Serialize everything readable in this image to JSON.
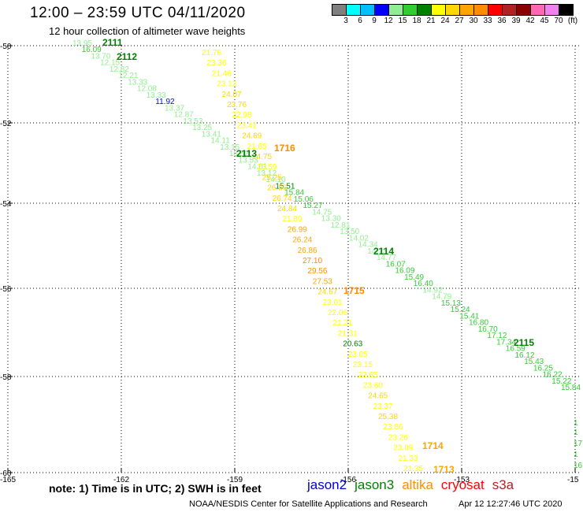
{
  "header": {
    "title": "12:00 – 23:59 UTC 04/11/2020",
    "subtitle": "12 hour collection of altimeter wave heights"
  },
  "color_scale": {
    "labels": [
      "3",
      "6",
      "9",
      "12",
      "15",
      "18",
      "21",
      "24",
      "27",
      "30",
      "33",
      "36",
      "39",
      "42",
      "45",
      "70",
      "(ft)"
    ],
    "colors": [
      "#808080",
      "#00ffff",
      "#00bfff",
      "#0000ff",
      "#90ee90",
      "#32cd32",
      "#008000",
      "#ffff00",
      "#ffd700",
      "#ffa500",
      "#ff8c00",
      "#ff0000",
      "#b22222",
      "#8b0000",
      "#ff69b4",
      "#ee82ee",
      "#000000"
    ]
  },
  "map": {
    "lat_labels": [
      "-50",
      "-52",
      "-54",
      "-56",
      "-58",
      "-60"
    ],
    "lon_labels": [
      "-165",
      "-162",
      "-159",
      "-156",
      "-153",
      "-15"
    ],
    "orbit_labels": [
      {
        "text": "2111",
        "color": "#008000"
      },
      {
        "text": "2112",
        "color": "#008000"
      },
      {
        "text": "2113",
        "color": "#008000"
      },
      {
        "text": "2114",
        "color": "#008000"
      },
      {
        "text": "2115",
        "color": "#008000"
      },
      {
        "text": "1716",
        "color": "#ff8c00"
      },
      {
        "text": "1715",
        "color": "#ff8c00"
      },
      {
        "text": "1714",
        "color": "#ffa500"
      },
      {
        "text": "1713",
        "color": "#ffa500"
      }
    ],
    "track_a": {
      "values": [
        "13.95",
        "16.09",
        "13.70",
        "12.15",
        "12.82",
        "12.21",
        "13.33",
        "12.08",
        "13.33",
        "11.92",
        "13.37",
        "12.87",
        "13.53",
        "13.25",
        "13.41",
        "14.11",
        "13.15",
        "13.52",
        "13.53",
        "14.01",
        "13.12",
        "14.10",
        "15.51",
        "15.84",
        "15.06",
        "15.27",
        "14.75",
        "13.30",
        "12.81",
        "13.50",
        "14.02",
        "14.34",
        "14.73",
        "14.77",
        "16.07",
        "16.09",
        "15.49",
        "16.40",
        "14.92",
        "14.79",
        "15.13",
        "15.24",
        "15.41",
        "16.80",
        "16.70",
        "17.12",
        "17.34",
        "16.59",
        "16.12",
        "15.43",
        "16.25",
        "16.22",
        "15.22",
        "15.84"
      ],
      "colors": [
        "#90ee90",
        "#32cd32",
        "#90ee90",
        "#90ee90",
        "#90ee90",
        "#90ee90",
        "#90ee90",
        "#90ee90",
        "#90ee90",
        "#0000ff",
        "#90ee90",
        "#90ee90",
        "#90ee90",
        "#90ee90",
        "#90ee90",
        "#90ee90",
        "#90ee90",
        "#90ee90",
        "#90ee90",
        "#90ee90",
        "#90ee90",
        "#90ee90",
        "#008000",
        "#32cd32",
        "#32cd32",
        "#32cd32",
        "#90ee90",
        "#90ee90",
        "#90ee90",
        "#90ee90",
        "#90ee90",
        "#90ee90",
        "#90ee90",
        "#90ee90",
        "#32cd32",
        "#32cd32",
        "#32cd32",
        "#32cd32",
        "#90ee90",
        "#90ee90",
        "#32cd32",
        "#32cd32",
        "#32cd32",
        "#32cd32",
        "#32cd32",
        "#32cd32",
        "#32cd32",
        "#32cd32",
        "#32cd32",
        "#32cd32",
        "#32cd32",
        "#32cd32",
        "#32cd32",
        "#32cd32"
      ]
    },
    "track_b": {
      "values": [
        "21.76",
        "23.36",
        "21.46",
        "23.12",
        "24.07",
        "23.76",
        "22.98",
        "23.41",
        "24.69",
        "21.65",
        "24.75",
        "23.59",
        "25.25",
        "26.56",
        "26.74",
        "24.84",
        "21.89",
        "26.99",
        "26.24",
        "26.86",
        "27.10",
        "29.56",
        "27.53",
        "24.67",
        "23.01",
        "22.06",
        "21.21",
        "21.31",
        "20.63",
        "23.05",
        "23.15",
        "22.65",
        "23.60",
        "24.65",
        "23.37",
        "25.38",
        "23.86",
        "23.26",
        "23.09",
        "21.33",
        "21.35"
      ],
      "colors": [
        "#ffff00",
        "#ffff00",
        "#ffff00",
        "#ffff00",
        "#ffd700",
        "#ffd700",
        "#ffff00",
        "#ffff00",
        "#ffd700",
        "#ffff00",
        "#ffd700",
        "#ffff00",
        "#ffd700",
        "#ffd700",
        "#ffd700",
        "#ffd700",
        "#ffff00",
        "#ffa500",
        "#ffa500",
        "#ffa500",
        "#ff8c00",
        "#ff8c00",
        "#ffa500",
        "#ffd700",
        "#ffff00",
        "#ffff00",
        "#ffff00",
        "#ffff00",
        "#008000",
        "#ffff00",
        "#ffff00",
        "#ffff00",
        "#ffff00",
        "#ffd700",
        "#ffff00",
        "#ffd700",
        "#ffff00",
        "#ffff00",
        "#ffff00",
        "#ffff00",
        "#ffff00"
      ]
    },
    "edge_partial": [
      "1",
      "1",
      "17",
      "1",
      "16"
    ]
  },
  "legend": {
    "note": "note: 1) Time is in UTC; 2) SWH is in feet",
    "satellites": [
      {
        "name": "jason2",
        "color": "#0000cc"
      },
      {
        "name": "jason3",
        "color": "#008000"
      },
      {
        "name": "altika",
        "color": "#ff8c00"
      },
      {
        "name": "cryosat",
        "color": "#ff0000"
      },
      {
        "name": "s3a",
        "color": "#b22222"
      }
    ]
  },
  "footer": {
    "credit": "NOAA/NESDIS Center for Satellite Applications and Research",
    "timestamp": "Apr 12 12:27:46 UTC 2020"
  }
}
